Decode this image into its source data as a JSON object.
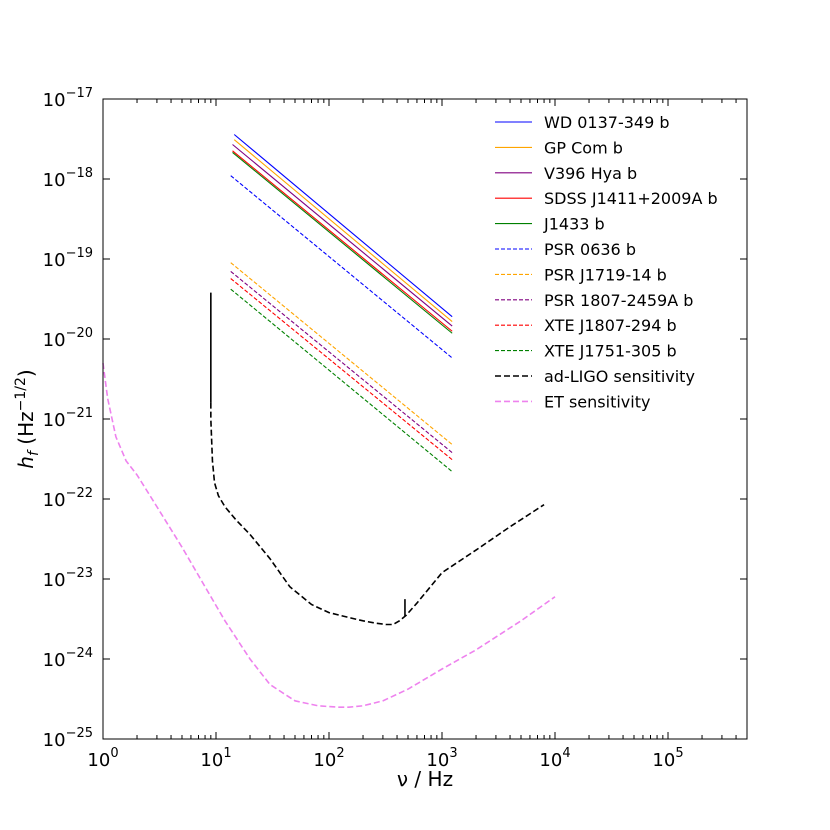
{
  "chart_data": {
    "type": "line",
    "xscale": "log",
    "yscale": "log",
    "xlim": [
      1,
      500000
    ],
    "ylim": [
      1e-25,
      1e-17
    ],
    "xlabel": {
      "main": "ν / Hz"
    },
    "ylabel": {
      "base": "h",
      "sub": "f",
      "unit_open": " (Hz",
      "unit_sup": "−1/2",
      "unit_close": ")"
    },
    "x_ticks": [
      {
        "value": 1,
        "base": "10",
        "exp": "0"
      },
      {
        "value": 10,
        "base": "10",
        "exp": "1"
      },
      {
        "value": 100,
        "base": "10",
        "exp": "2"
      },
      {
        "value": 1000,
        "base": "10",
        "exp": "3"
      },
      {
        "value": 10000,
        "base": "10",
        "exp": "4"
      },
      {
        "value": 100000,
        "base": "10",
        "exp": "5"
      }
    ],
    "y_ticks": [
      {
        "value": 1e-25,
        "base": "10",
        "exp": "−25"
      },
      {
        "value": 1e-24,
        "base": "10",
        "exp": "−24"
      },
      {
        "value": 1e-23,
        "base": "10",
        "exp": "−23"
      },
      {
        "value": 1e-22,
        "base": "10",
        "exp": "−22"
      },
      {
        "value": 1e-21,
        "base": "10",
        "exp": "−21"
      },
      {
        "value": 1e-20,
        "base": "10",
        "exp": "−20"
      },
      {
        "value": 1e-19,
        "base": "10",
        "exp": "−19"
      },
      {
        "value": 1e-18,
        "base": "10",
        "exp": "−18"
      },
      {
        "value": 1e-17,
        "base": "10",
        "exp": "−17"
      }
    ],
    "legend_position": "top-right",
    "series": [
      {
        "name": "WD 0137-349 b",
        "color": "#0000ff",
        "dash": "solid",
        "x": [
          14.5,
          1230
        ],
        "y": [
          3.6e-18,
          1.9e-20
        ]
      },
      {
        "name": "GP Com b",
        "color": "#ffa500",
        "dash": "solid",
        "x": [
          14.5,
          1230
        ],
        "y": [
          3.1e-18,
          1.65e-20
        ]
      },
      {
        "name": "V396 Hya b",
        "color": "#800080",
        "dash": "solid",
        "x": [
          14.0,
          1230
        ],
        "y": [
          2.7e-18,
          1.45e-20
        ]
      },
      {
        "name": "SDSS J1411+2009A b",
        "color": "#ff0000",
        "dash": "solid",
        "x": [
          14.0,
          1230
        ],
        "y": [
          2.25e-18,
          1.25e-20
        ]
      },
      {
        "name": "J1433 b",
        "color": "#008000",
        "dash": "solid",
        "x": [
          14.0,
          1230
        ],
        "y": [
          2.15e-18,
          1.18e-20
        ]
      },
      {
        "name": "PSR 0636 b",
        "color": "#0000ff",
        "dash": "dashed",
        "x": [
          13.5,
          1230
        ],
        "y": [
          1.1e-18,
          5.8e-21
        ]
      },
      {
        "name": "PSR J1719-14 b",
        "color": "#ffa500",
        "dash": "dashed",
        "x": [
          13.5,
          1230
        ],
        "y": [
          9e-20,
          4.8e-22
        ]
      },
      {
        "name": "PSR 1807-2459A b",
        "color": "#800080",
        "dash": "dashed",
        "x": [
          13.5,
          1230
        ],
        "y": [
          7e-20,
          3.8e-22
        ]
      },
      {
        "name": "XTE J1807-294 b",
        "color": "#ff0000",
        "dash": "dashed",
        "x": [
          13.5,
          1230
        ],
        "y": [
          5.7e-20,
          3.1e-22
        ]
      },
      {
        "name": "XTE J1751-305 b",
        "color": "#008000",
        "dash": "dashed",
        "x": [
          13.5,
          1230
        ],
        "y": [
          4.2e-20,
          2.2e-22
        ]
      },
      {
        "name": "ad-LIGO sensitivity",
        "color": "#000000",
        "dash": "dashed",
        "x": [
          9.0,
          9.0,
          9.3,
          9.7,
          10.5,
          12,
          15,
          20,
          30,
          45,
          70,
          100,
          150,
          200,
          260,
          320,
          370,
          420,
          480,
          600,
          1000,
          2000,
          4000,
          8000
        ],
        "y": [
          1.6e-21,
          1e-21,
          3e-22,
          1.6e-22,
          1.1e-22,
          8e-23,
          5.5e-23,
          3.6e-23,
          1.8e-23,
          8e-24,
          4.8e-24,
          3.8e-24,
          3.3e-24,
          3e-24,
          2.8e-24,
          2.7e-24,
          2.7e-24,
          3e-24,
          3.5e-24,
          5e-24,
          1.2e-23,
          2.3e-23,
          4.5e-23,
          8.5e-23
        ]
      },
      {
        "name": "ET sensitivity",
        "color": "#ee82ee",
        "dash": "dashed",
        "x": [
          1.0,
          1.1,
          1.3,
          1.6,
          2.0,
          3,
          5,
          8,
          12,
          20,
          30,
          50,
          80,
          120,
          150,
          200,
          300,
          500,
          1000,
          2000,
          5000,
          10000
        ],
        "y": [
          5e-21,
          1.8e-21,
          6e-22,
          3e-22,
          2e-22,
          8e-23,
          2.5e-23,
          8e-24,
          3e-24,
          1e-24,
          4.8e-25,
          3e-25,
          2.6e-25,
          2.5e-25,
          2.5e-25,
          2.6e-25,
          3e-25,
          4.2e-25,
          7.5e-25,
          1.3e-24,
          3e-24,
          6e-24
        ]
      }
    ],
    "ligo_glitches": [
      {
        "x": 9.0,
        "y1": 1.6e-21,
        "y2": 3.8e-20
      },
      {
        "x": 470,
        "y1": 3.4e-24,
        "y2": 5.6e-24
      }
    ]
  }
}
